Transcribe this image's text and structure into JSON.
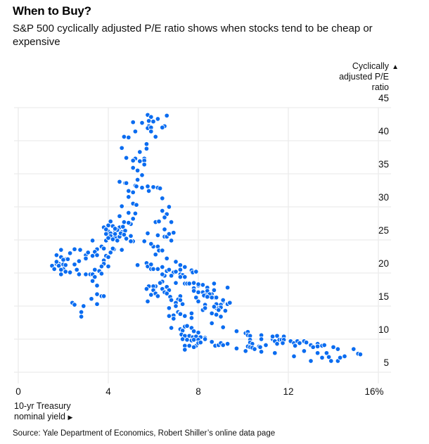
{
  "title": "When to Buy?",
  "subtitle": "S&P 500 cyclically adjusted P/E ratio shows when stocks tend to be cheap or expensive",
  "source": "Source: Yale Department of Economics, Robert Shiller’s online data page",
  "colors": {
    "dot": "#0a6cf0",
    "grid": "#ececec",
    "text": "#111111"
  },
  "chart_data": {
    "type": "scatter",
    "title": "When to Buy?",
    "subtitle": "S&P 500 cyclically adjusted P/E ratio shows when stocks tend to be cheap or expensive",
    "xlabel_lines": [
      "10-yr Treasury",
      "nominal yield"
    ],
    "xlabel_arrow": "▶",
    "ylabel_lines": [
      "Cyclically",
      "adjusted P/E",
      "ratio"
    ],
    "ylabel_arrow": "▲",
    "xlim": [
      0,
      16
    ],
    "ylim": [
      5,
      45
    ],
    "x_ticks": [
      0,
      4,
      8,
      12,
      16
    ],
    "x_tick_labels": [
      "0",
      "4",
      "8",
      "12",
      "16%"
    ],
    "y_ticks": [
      5,
      10,
      15,
      20,
      25,
      30,
      35,
      40,
      45
    ],
    "y_tick_labels": [
      "5",
      "10",
      "15",
      "20",
      "25",
      "30",
      "35",
      "40",
      "45"
    ],
    "y_axis_side": "right",
    "grid": true,
    "legend": "none",
    "points": [
      [
        6.2,
        43.2
      ],
      [
        6.6,
        43.8
      ],
      [
        5.75,
        43.9
      ],
      [
        5.9,
        43.6
      ],
      [
        6.2,
        43.3
      ],
      [
        5.8,
        43.0
      ],
      [
        6.0,
        42.9
      ],
      [
        5.1,
        42.8
      ],
      [
        5.5,
        42.7
      ],
      [
        5.8,
        42.2
      ],
      [
        6.5,
        42.2
      ],
      [
        6.4,
        42.0
      ],
      [
        5.75,
        41.9
      ],
      [
        5.9,
        42.0
      ],
      [
        5.2,
        41.4
      ],
      [
        5.9,
        41.4
      ],
      [
        4.7,
        40.6
      ],
      [
        4.9,
        40.5
      ],
      [
        6.1,
        40.6
      ],
      [
        5.7,
        39.5
      ],
      [
        5.7,
        38.8
      ],
      [
        4.6,
        38.9
      ],
      [
        5.4,
        38.3
      ],
      [
        4.8,
        37.4
      ],
      [
        5.2,
        37.3
      ],
      [
        5.1,
        37.0
      ],
      [
        5.6,
        37.3
      ],
      [
        5.6,
        37.0
      ],
      [
        5.4,
        36.9
      ],
      [
        5.6,
        36.4
      ],
      [
        5.1,
        35.9
      ],
      [
        5.3,
        35.5
      ],
      [
        5.5,
        34.8
      ],
      [
        5.3,
        34.1
      ],
      [
        4.5,
        33.8
      ],
      [
        4.75,
        33.6
      ],
      [
        5.2,
        33.2
      ],
      [
        5.5,
        32.9
      ],
      [
        5.75,
        33.1
      ],
      [
        6.0,
        33.0
      ],
      [
        6.2,
        32.9
      ],
      [
        6.3,
        32.8
      ],
      [
        4.8,
        33.6
      ],
      [
        5.25,
        33.1
      ],
      [
        4.9,
        32.4
      ],
      [
        5.1,
        32.2
      ],
      [
        5.8,
        32.4
      ],
      [
        4.9,
        31.5
      ],
      [
        6.4,
        31.3
      ],
      [
        5.1,
        30.5
      ],
      [
        5.25,
        30.3
      ],
      [
        4.6,
        30.1
      ],
      [
        6.7,
        30.0
      ],
      [
        4.9,
        29.1
      ],
      [
        5.2,
        29.0
      ],
      [
        6.4,
        29.4
      ],
      [
        6.6,
        28.9
      ],
      [
        4.5,
        28.6
      ],
      [
        5.1,
        28.2
      ],
      [
        6.5,
        28.4
      ],
      [
        5.0,
        27.4
      ],
      [
        6.1,
        27.7
      ],
      [
        6.25,
        27.8
      ],
      [
        6.8,
        27.7
      ],
      [
        6.5,
        26.6
      ],
      [
        5.75,
        26.1
      ],
      [
        6.2,
        25.7
      ],
      [
        6.5,
        25.5
      ],
      [
        6.6,
        25.5
      ],
      [
        6.7,
        25.9
      ],
      [
        6.9,
        26.1
      ],
      [
        6.8,
        24.9
      ],
      [
        5.6,
        24.8
      ],
      [
        5.9,
        24.5
      ],
      [
        6.0,
        24.0
      ],
      [
        6.2,
        24.0
      ],
      [
        6.25,
        23.4
      ],
      [
        6.4,
        23.4
      ],
      [
        5.1,
        24.8
      ],
      [
        4.8,
        25.1
      ],
      [
        4.6,
        23.5
      ],
      [
        4.25,
        23.6
      ],
      [
        4.1,
        27.8
      ],
      [
        3.8,
        26.9
      ],
      [
        4.7,
        27.7
      ],
      [
        4.9,
        27.6
      ],
      [
        4.2,
        27.1
      ],
      [
        4.5,
        26.9
      ],
      [
        4.65,
        27.0
      ],
      [
        4.0,
        26.3
      ],
      [
        4.1,
        26.0
      ],
      [
        4.3,
        26.4
      ],
      [
        4.4,
        26.5
      ],
      [
        4.6,
        26.2
      ],
      [
        4.1,
        25.6
      ],
      [
        4.3,
        25.4
      ],
      [
        4.4,
        24.9
      ],
      [
        4.8,
        25.2
      ],
      [
        5.0,
        24.8
      ],
      [
        3.3,
        24.9
      ],
      [
        3.9,
        24.9
      ],
      [
        3.9,
        25.9
      ],
      [
        4.3,
        25.9
      ],
      [
        4.2,
        25.1
      ],
      [
        4.5,
        25.5
      ],
      [
        4.0,
        27.2
      ],
      [
        4.75,
        26.4
      ],
      [
        3.9,
        26.6
      ],
      [
        4.3,
        26.7
      ],
      [
        4.55,
        26.0
      ],
      [
        4.0,
        25.3
      ],
      [
        4.7,
        25.8
      ],
      [
        1.9,
        23.5
      ],
      [
        2.5,
        23.6
      ],
      [
        2.75,
        23.5
      ],
      [
        3.5,
        23.6
      ],
      [
        3.7,
        24.0
      ],
      [
        3.8,
        23.7
      ],
      [
        4.2,
        23.7
      ],
      [
        4.6,
        23.5
      ],
      [
        1.7,
        22.7
      ],
      [
        1.9,
        22.4
      ],
      [
        2.1,
        22.1
      ],
      [
        2.3,
        23.0
      ],
      [
        3.0,
        22.7
      ],
      [
        3.1,
        23.1
      ],
      [
        3.4,
        23.2
      ],
      [
        3.3,
        22.6
      ],
      [
        3.5,
        22.7
      ],
      [
        3.0,
        22.1
      ],
      [
        2.7,
        21.8
      ],
      [
        4.1,
        23.1
      ],
      [
        3.9,
        22.6
      ],
      [
        4.0,
        22.4
      ],
      [
        3.8,
        21.9
      ],
      [
        3.8,
        21.4
      ],
      [
        1.5,
        21.1
      ],
      [
        1.6,
        20.6
      ],
      [
        1.7,
        21.4
      ],
      [
        1.8,
        21.4
      ],
      [
        2.0,
        21.3
      ],
      [
        2.1,
        21.2
      ],
      [
        2.0,
        20.6
      ],
      [
        2.5,
        21.3
      ],
      [
        4.0,
        21.0
      ],
      [
        3.7,
        21.0
      ],
      [
        3.4,
        20.5
      ],
      [
        3.6,
        20.3
      ],
      [
        2.1,
        20.2
      ],
      [
        2.3,
        20.1
      ],
      [
        2.6,
        20.4
      ],
      [
        1.9,
        19.8
      ],
      [
        2.7,
        19.9
      ],
      [
        3.0,
        19.8
      ],
      [
        3.2,
        19.8
      ],
      [
        3.3,
        19.8
      ],
      [
        3.7,
        19.9
      ],
      [
        3.4,
        19.4
      ],
      [
        3.3,
        18.8
      ],
      [
        3.5,
        18.1
      ],
      [
        3.5,
        16.8
      ],
      [
        1.7,
        21.7
      ],
      [
        1.8,
        21.1
      ],
      [
        2.0,
        22.0
      ],
      [
        2.2,
        22.1
      ],
      [
        1.9,
        20.5
      ],
      [
        3.0,
        22.2
      ],
      [
        2.6,
        20.5
      ],
      [
        2.7,
        19.8
      ],
      [
        3.7,
        16.5
      ],
      [
        3.8,
        16.5
      ],
      [
        3.25,
        16.1
      ],
      [
        3.5,
        15.3
      ],
      [
        2.4,
        15.5
      ],
      [
        2.5,
        15.2
      ],
      [
        2.9,
        15.0
      ],
      [
        2.8,
        14.1
      ],
      [
        2.8,
        13.4
      ],
      [
        5.0,
        25.6
      ],
      [
        5.75,
        26.0
      ],
      [
        5.9,
        24.4
      ],
      [
        6.1,
        22.8
      ],
      [
        6.6,
        22.2
      ],
      [
        5.3,
        21.2
      ],
      [
        5.7,
        21.5
      ],
      [
        5.75,
        21.0
      ],
      [
        5.9,
        21.3
      ],
      [
        5.9,
        20.6
      ],
      [
        6.0,
        20.6
      ],
      [
        6.2,
        20.6
      ],
      [
        6.4,
        20.9
      ],
      [
        6.6,
        20.3
      ],
      [
        6.7,
        20.5
      ],
      [
        7.0,
        21.7
      ],
      [
        7.2,
        21.2
      ],
      [
        7.2,
        20.5
      ],
      [
        7.4,
        20.9
      ],
      [
        7.7,
        20.4
      ],
      [
        7.9,
        20.3
      ],
      [
        6.9,
        20.1
      ],
      [
        7.0,
        20.2
      ],
      [
        6.8,
        19.6
      ],
      [
        6.5,
        19.6
      ],
      [
        6.4,
        19.8
      ],
      [
        7.2,
        19.8
      ],
      [
        7.3,
        19.7
      ],
      [
        7.2,
        19.4
      ],
      [
        7.4,
        19.4
      ],
      [
        6.4,
        18.7
      ],
      [
        6.3,
        18.5
      ],
      [
        6.1,
        18.0
      ],
      [
        6.0,
        18.0
      ],
      [
        5.8,
        18.0
      ],
      [
        5.7,
        17.6
      ],
      [
        6.0,
        17.4
      ],
      [
        6.4,
        17.6
      ],
      [
        6.6,
        17.9
      ],
      [
        6.7,
        17.4
      ],
      [
        6.5,
        17.1
      ],
      [
        6.6,
        16.9
      ],
      [
        5.9,
        16.7
      ],
      [
        6.1,
        16.9
      ],
      [
        6.2,
        16.5
      ],
      [
        7.0,
        18.5
      ],
      [
        7.4,
        18.4
      ],
      [
        7.5,
        18.4
      ],
      [
        7.8,
        18.6
      ],
      [
        8.0,
        18.1
      ],
      [
        8.2,
        18.2
      ],
      [
        8.7,
        18.4
      ],
      [
        7.8,
        17.6
      ],
      [
        8.0,
        17.0
      ],
      [
        8.2,
        17.1
      ],
      [
        8.4,
        17.8
      ],
      [
        8.4,
        16.9
      ],
      [
        8.7,
        17.4
      ],
      [
        8.6,
        16.8
      ],
      [
        8.7,
        16.3
      ],
      [
        8.8,
        16.3
      ],
      [
        6.75,
        16.4
      ],
      [
        7.2,
        16.5
      ],
      [
        6.8,
        15.9
      ],
      [
        7.1,
        16.0
      ],
      [
        7.2,
        15.9
      ],
      [
        7.0,
        15.5
      ],
      [
        7.3,
        15.3
      ],
      [
        5.75,
        15.7
      ],
      [
        7.9,
        16.3
      ],
      [
        8.0,
        15.6
      ],
      [
        8.3,
        15.2
      ],
      [
        9.1,
        15.7
      ],
      [
        8.8,
        15.3
      ],
      [
        6.7,
        14.7
      ],
      [
        7.1,
        14.1
      ],
      [
        7.2,
        13.9
      ],
      [
        7.7,
        13.9
      ],
      [
        8.2,
        14.4
      ],
      [
        8.7,
        14.8
      ],
      [
        8.8,
        14.7
      ],
      [
        6.7,
        13.6
      ],
      [
        6.9,
        13.6
      ],
      [
        7.4,
        13.6
      ],
      [
        7.0,
        15.0
      ],
      [
        7.3,
        15.3
      ],
      [
        8.7,
        14.9
      ],
      [
        9.1,
        15.9
      ],
      [
        9.4,
        15.6
      ],
      [
        8.6,
        13.9
      ],
      [
        8.8,
        13.7
      ],
      [
        9.0,
        13.4
      ],
      [
        9.2,
        14.3
      ],
      [
        6.7,
        13.5
      ],
      [
        6.9,
        13.1
      ],
      [
        7.2,
        13.8
      ],
      [
        7.4,
        13.5
      ],
      [
        7.7,
        13.2
      ],
      [
        8.6,
        12.4
      ],
      [
        9.1,
        11.8
      ],
      [
        9.7,
        11.2
      ],
      [
        6.8,
        11.7
      ],
      [
        7.2,
        11.5
      ],
      [
        7.3,
        11.3
      ],
      [
        7.4,
        11.9
      ],
      [
        7.5,
        12.0
      ],
      [
        7.7,
        11.7
      ],
      [
        7.8,
        11.2
      ],
      [
        8.0,
        11.0
      ],
      [
        7.25,
        10.7
      ],
      [
        7.4,
        10.5
      ],
      [
        7.6,
        10.5
      ],
      [
        7.75,
        10.3
      ],
      [
        7.9,
        10.4
      ],
      [
        8.1,
        10.3
      ],
      [
        8.3,
        10.2
      ],
      [
        8.3,
        10.0
      ],
      [
        7.3,
        10.0
      ],
      [
        7.5,
        9.9
      ],
      [
        7.7,
        9.8
      ],
      [
        7.8,
        9.9
      ],
      [
        8.0,
        9.9
      ],
      [
        8.6,
        9.6
      ],
      [
        8.75,
        9.0
      ],
      [
        8.9,
        9.1
      ],
      [
        9.0,
        9.4
      ],
      [
        9.1,
        9.1
      ],
      [
        9.3,
        9.3
      ],
      [
        7.4,
        9.0
      ],
      [
        7.6,
        9.0
      ],
      [
        7.9,
        9.0
      ],
      [
        8.0,
        9.4
      ],
      [
        8.1,
        9.5
      ],
      [
        7.4,
        8.4
      ],
      [
        7.8,
        8.8
      ],
      [
        9.7,
        8.6
      ],
      [
        10.1,
        10.9
      ],
      [
        10.2,
        11.1
      ],
      [
        10.2,
        10.6
      ],
      [
        10.3,
        10.5
      ],
      [
        10.3,
        9.9
      ],
      [
        10.3,
        9.5
      ],
      [
        10.4,
        9.3
      ],
      [
        10.2,
        8.9
      ],
      [
        10.3,
        8.8
      ],
      [
        10.4,
        8.7
      ],
      [
        10.5,
        8.5
      ],
      [
        10.7,
        8.9
      ],
      [
        10.75,
        8.8
      ],
      [
        10.1,
        8.2
      ],
      [
        10.8,
        10.6
      ],
      [
        10.8,
        10.0
      ],
      [
        10.8,
        8.1
      ],
      [
        11.0,
        9.1
      ],
      [
        11.3,
        10.0
      ],
      [
        11.3,
        10.4
      ],
      [
        11.5,
        10.5
      ],
      [
        11.4,
        9.7
      ],
      [
        11.5,
        9.3
      ],
      [
        11.6,
        9.9
      ],
      [
        11.7,
        9.9
      ],
      [
        11.8,
        10.4
      ],
      [
        11.8,
        9.9
      ],
      [
        11.75,
        9.4
      ],
      [
        11.4,
        7.9
      ],
      [
        12.1,
        9.7
      ],
      [
        12.25,
        9.4
      ],
      [
        12.3,
        9.0
      ],
      [
        12.4,
        9.7
      ],
      [
        12.5,
        9.4
      ],
      [
        12.7,
        9.7
      ],
      [
        12.8,
        9.5
      ],
      [
        12.25,
        7.4
      ],
      [
        12.7,
        8.2
      ],
      [
        13.0,
        9.1
      ],
      [
        13.1,
        8.8
      ],
      [
        13.3,
        9.3
      ],
      [
        13.3,
        8.9
      ],
      [
        13.5,
        9.0
      ],
      [
        13.6,
        9.1
      ],
      [
        13.3,
        7.9
      ],
      [
        13.7,
        7.9
      ],
      [
        13.5,
        7.2
      ],
      [
        13.8,
        7.3
      ],
      [
        13.9,
        6.7
      ],
      [
        14.0,
        8.8
      ],
      [
        14.2,
        8.5
      ],
      [
        13.0,
        6.7
      ],
      [
        14.2,
        6.7
      ],
      [
        14.3,
        7.2
      ],
      [
        14.5,
        7.4
      ],
      [
        14.9,
        8.5
      ],
      [
        15.1,
        7.8
      ],
      [
        15.2,
        7.7
      ],
      [
        7.7,
        20.4
      ],
      [
        7.75,
        20.1
      ],
      [
        7.9,
        20.2
      ],
      [
        7.8,
        18.5
      ],
      [
        7.6,
        18.4
      ],
      [
        8.0,
        18.3
      ],
      [
        9.3,
        17.8
      ],
      [
        7.8,
        17.7
      ],
      [
        7.8,
        17.3
      ],
      [
        8.0,
        17.1
      ],
      [
        8.4,
        17.3
      ],
      [
        8.3,
        16.7
      ],
      [
        8.5,
        16.8
      ],
      [
        8.6,
        16.3
      ],
      [
        8.25,
        16.6
      ],
      [
        8.4,
        16.4
      ],
      [
        8.0,
        15.7
      ],
      [
        8.3,
        14.7
      ],
      [
        9.0,
        15.2
      ],
      [
        9.3,
        15.3
      ],
      [
        9.4,
        15.5
      ],
      [
        8.9,
        14.7
      ],
      [
        9.0,
        14.8
      ],
      [
        8.9,
        14.4
      ],
      [
        7.7,
        13.9
      ]
    ]
  }
}
